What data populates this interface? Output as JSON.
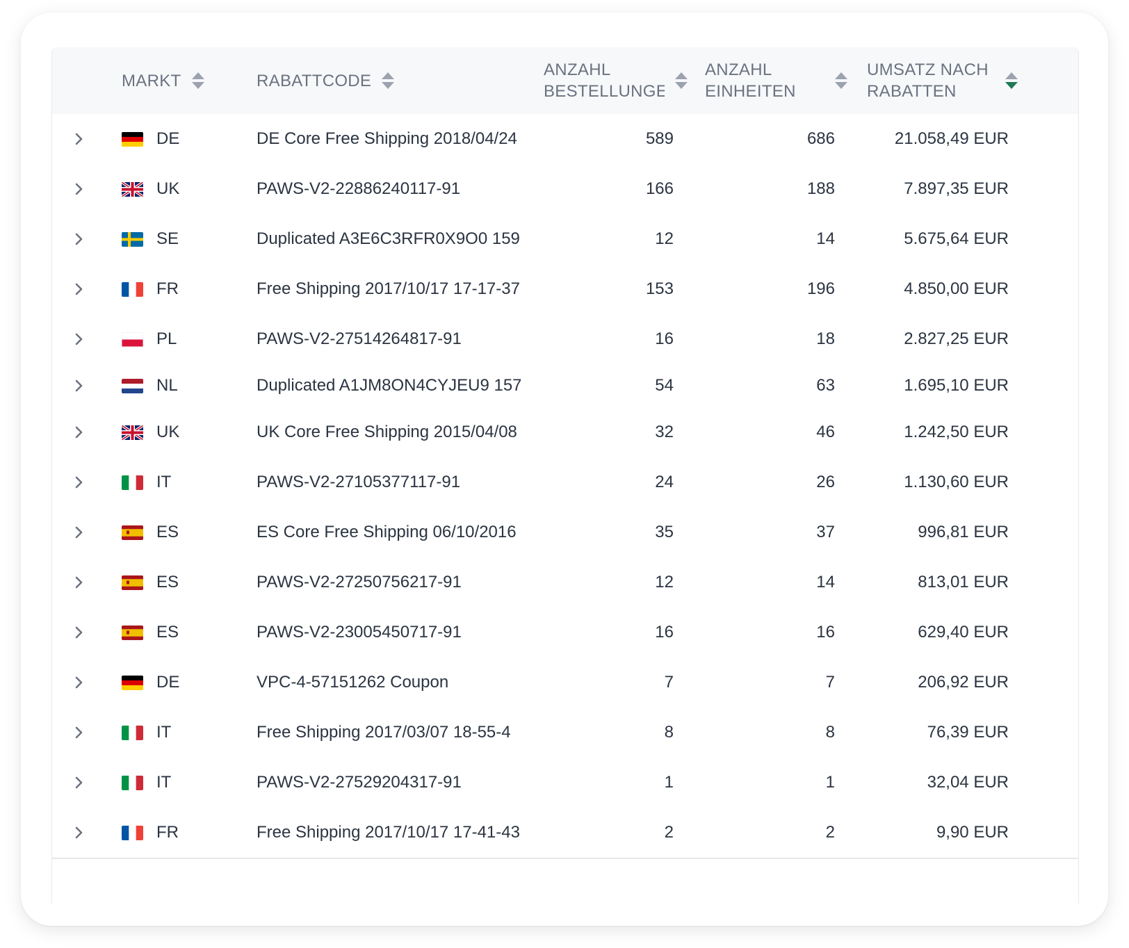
{
  "header": {
    "columns": [
      {
        "key": "markt",
        "label_lines": [
          "MARKT"
        ],
        "sort": "none"
      },
      {
        "key": "rabattcode",
        "label_lines": [
          "RABATTCODE"
        ],
        "sort": "none"
      },
      {
        "key": "bestellungen",
        "label_lines": [
          "ANZAHL",
          "BESTELLUNGEN"
        ],
        "sort": "none"
      },
      {
        "key": "einheiten",
        "label_lines": [
          "ANZAHL",
          "EINHEITEN"
        ],
        "sort": "none"
      },
      {
        "key": "umsatz",
        "label_lines": [
          "UMSATZ NACH",
          "RABATTEN"
        ],
        "sort": "descending"
      }
    ]
  },
  "colors": {
    "sort_inactive": "#9ca3af",
    "sort_active": "#1f7a55"
  },
  "rows": [
    {
      "flag": "DE",
      "market": "DE",
      "code": "DE Core Free Shipping 2018/04/24",
      "orders": "589",
      "units": "686",
      "revenue": "21.058,49 EUR"
    },
    {
      "flag": "UK",
      "market": "UK",
      "code": "PAWS-V2-22886240117-91",
      "orders": "166",
      "units": "188",
      "revenue": "7.897,35 EUR"
    },
    {
      "flag": "SE",
      "market": "SE",
      "code": "Duplicated A3E6C3RFR0X9O0 159",
      "orders": "12",
      "units": "14",
      "revenue": "5.675,64 EUR"
    },
    {
      "flag": "FR",
      "market": "FR",
      "code": "Free Shipping 2017/10/17 17-17-37",
      "orders": "153",
      "units": "196",
      "revenue": "4.850,00 EUR"
    },
    {
      "flag": "PL",
      "market": "PL",
      "code": "PAWS-V2-27514264817-91",
      "orders": "16",
      "units": "18",
      "revenue": "2.827,25 EUR"
    },
    {
      "flag": "NL",
      "market": "NL",
      "code": "Duplicated A1JM8ON4CYJEU9 157",
      "orders": "54",
      "units": "63",
      "revenue": "1.695,10 EUR"
    },
    {
      "flag": "UK",
      "market": "UK",
      "code": "UK Core Free Shipping 2015/04/08",
      "orders": "32",
      "units": "46",
      "revenue": "1.242,50 EUR"
    },
    {
      "flag": "IT",
      "market": "IT",
      "code": "PAWS-V2-27105377117-91",
      "orders": "24",
      "units": "26",
      "revenue": "1.130,60 EUR"
    },
    {
      "flag": "ES",
      "market": "ES",
      "code": "ES Core Free Shipping 06/10/2016",
      "orders": "35",
      "units": "37",
      "revenue": "996,81 EUR"
    },
    {
      "flag": "ES",
      "market": "ES",
      "code": "PAWS-V2-27250756217-91",
      "orders": "12",
      "units": "14",
      "revenue": "813,01 EUR"
    },
    {
      "flag": "ES",
      "market": "ES",
      "code": "PAWS-V2-23005450717-91",
      "orders": "16",
      "units": "16",
      "revenue": "629,40 EUR"
    },
    {
      "flag": "DE",
      "market": "DE",
      "code": "VPC-4-57151262 Coupon",
      "orders": "7",
      "units": "7",
      "revenue": "206,92 EUR"
    },
    {
      "flag": "IT",
      "market": "IT",
      "code": "Free Shipping 2017/03/07 18-55-4",
      "orders": "8",
      "units": "8",
      "revenue": "76,39 EUR"
    },
    {
      "flag": "IT",
      "market": "IT",
      "code": "PAWS-V2-27529204317-91",
      "orders": "1",
      "units": "1",
      "revenue": "32,04 EUR"
    },
    {
      "flag": "FR",
      "market": "FR",
      "code": "Free Shipping 2017/10/17 17-41-43",
      "orders": "2",
      "units": "2",
      "revenue": "9,90 EUR"
    }
  ]
}
